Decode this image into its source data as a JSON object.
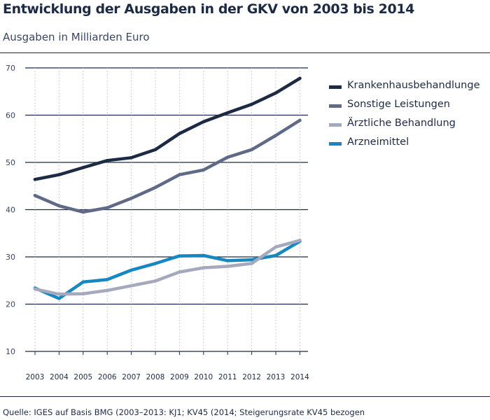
{
  "header": {
    "title": "Entwicklung der Ausgaben in der GKV von 2003 bis 2014",
    "subtitle": "Ausgaben in Milliarden Euro"
  },
  "footer": {
    "source": "Quelle: IGES auf Basis BMG (2003–2013: KJ1; KV45 (2014; Steigerungsrate KV45 bezogen"
  },
  "chart_data": {
    "type": "line",
    "title": "Entwicklung der Ausgaben in der GKV von 2003 bis 2014",
    "subtitle": "Ausgaben in Milliarden Euro",
    "xlabel": "",
    "ylabel": "",
    "x": [
      "2003",
      "2004",
      "2005",
      "2006",
      "2007",
      "2008",
      "2009",
      "2010",
      "2011",
      "2012",
      "2013",
      "2014"
    ],
    "ylim": [
      10,
      70
    ],
    "yticks": [
      10,
      20,
      30,
      40,
      50,
      60,
      70
    ],
    "grid": true,
    "legend_position": "right",
    "series": [
      {
        "name": "Krankenhausbehandlunge",
        "color": "#1c2a44",
        "values": [
          46.4,
          47.4,
          48.9,
          50.4,
          51.0,
          52.7,
          56.1,
          58.6,
          60.5,
          62.3,
          64.7,
          67.8
        ]
      },
      {
        "name": "Sonstige Leistungen",
        "color": "#606a87",
        "values": [
          43.0,
          40.8,
          39.5,
          40.4,
          42.4,
          44.7,
          47.4,
          48.4,
          51.1,
          52.7,
          55.7,
          58.9
        ]
      },
      {
        "name": "Ärztliche Behandlung",
        "color": "#a4a9bd",
        "values": [
          23.2,
          22.1,
          22.2,
          22.9,
          23.9,
          24.9,
          26.8,
          27.7,
          28.0,
          28.6,
          32.1,
          33.5
        ]
      },
      {
        "name": "Arzneimittel",
        "color": "#1787c2",
        "values": [
          23.4,
          21.2,
          24.7,
          25.2,
          27.2,
          28.6,
          30.2,
          30.3,
          29.2,
          29.4,
          30.3,
          33.3
        ]
      }
    ]
  }
}
